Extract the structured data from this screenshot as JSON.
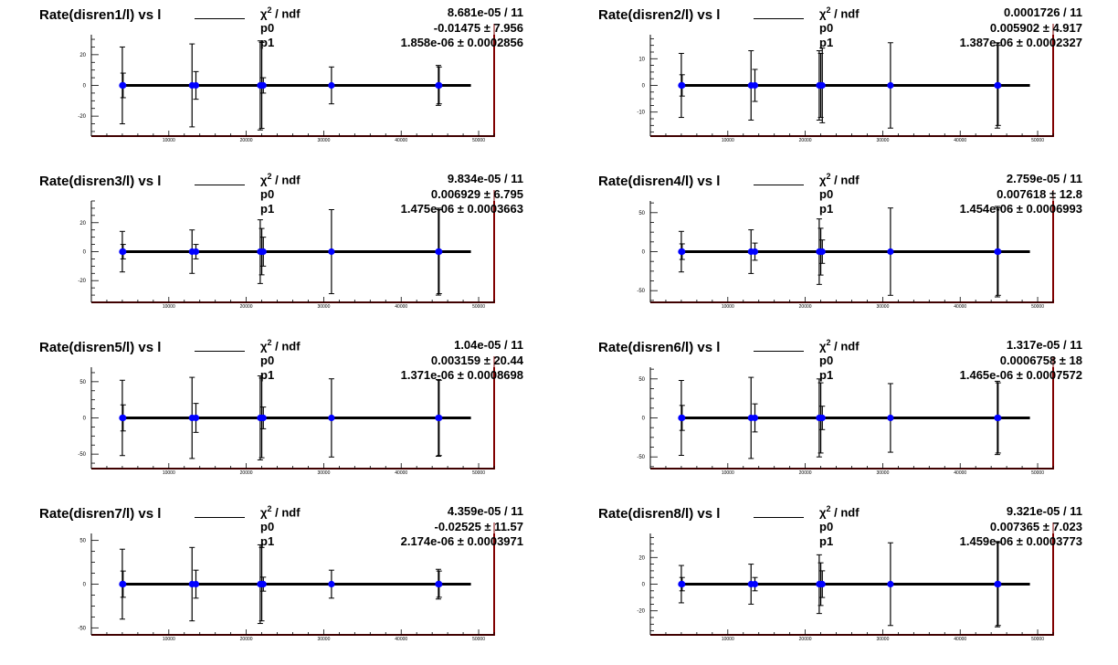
{
  "colors": {
    "marker": "#0000ff",
    "frame_shadow": "#800000",
    "line": "#000000"
  },
  "stats_labels": {
    "chi2_symbol": "χ",
    "chi2_power": "2",
    "chi2_rest": " / ndf",
    "p0": "p0",
    "p1": "p1"
  },
  "chart_data": [
    {
      "type": "scatter",
      "title": "Rate(disren1/l) vs l",
      "stats": {
        "chi2_ndf": "8.681e-05 / 11",
        "p0": "-0.01475 ± 7.956",
        "p1": "1.858e-06 ± 0.0002856"
      },
      "xlim": [
        0,
        52000
      ],
      "ylim": [
        -33,
        33
      ],
      "x_ticks": [
        10000,
        20000,
        30000,
        40000,
        50000
      ],
      "x_tick_labels": [
        "10000",
        "20000",
        "30000",
        "40000",
        "50000"
      ],
      "y_ticks": [
        -20,
        0,
        20
      ],
      "y_tick_labels": [
        "-20",
        "0",
        "20"
      ],
      "fit_line": {
        "x0": 4000,
        "x1": 49000,
        "y0": 0,
        "y1": 0
      },
      "points": [
        {
          "x": 4000,
          "y": 0,
          "err": 25
        },
        {
          "x": 4100,
          "y": 0,
          "err": 8
        },
        {
          "x": 13000,
          "y": 0,
          "err": 27
        },
        {
          "x": 13500,
          "y": 0,
          "err": 9
        },
        {
          "x": 21800,
          "y": 0,
          "err": 29
        },
        {
          "x": 22000,
          "y": 0,
          "err": 28
        },
        {
          "x": 22200,
          "y": 0,
          "err": 5
        },
        {
          "x": 31000,
          "y": 0,
          "err": 12
        },
        {
          "x": 44800,
          "y": 0,
          "err": 13
        },
        {
          "x": 44900,
          "y": 0,
          "err": 12
        }
      ]
    },
    {
      "type": "scatter",
      "title": "Rate(disren2/l) vs l",
      "stats": {
        "chi2_ndf": "0.0001726 / 11",
        "p0": "0.005902 ± 4.917",
        "p1": "1.387e-06 ± 0.0002327"
      },
      "xlim": [
        0,
        52000
      ],
      "ylim": [
        -19,
        19
      ],
      "x_ticks": [
        10000,
        20000,
        30000,
        40000,
        50000
      ],
      "x_tick_labels": [
        "10000",
        "20000",
        "30000",
        "40000",
        "50000"
      ],
      "y_ticks": [
        -10,
        0,
        10
      ],
      "y_tick_labels": [
        "-10",
        "0",
        "10"
      ],
      "fit_line": {
        "x0": 4000,
        "x1": 49000,
        "y0": 0,
        "y1": 0
      },
      "points": [
        {
          "x": 4000,
          "y": 0,
          "err": 12
        },
        {
          "x": 4100,
          "y": 0,
          "err": 4
        },
        {
          "x": 13000,
          "y": 0,
          "err": 13
        },
        {
          "x": 13500,
          "y": 0,
          "err": 6
        },
        {
          "x": 21800,
          "y": 0,
          "err": 13
        },
        {
          "x": 22000,
          "y": 0,
          "err": 12
        },
        {
          "x": 22200,
          "y": 0,
          "err": 14
        },
        {
          "x": 31000,
          "y": 0,
          "err": 16
        },
        {
          "x": 44800,
          "y": 0,
          "err": 16
        },
        {
          "x": 44900,
          "y": 0,
          "err": 15
        }
      ]
    },
    {
      "type": "scatter",
      "title": "Rate(disren3/l) vs l",
      "stats": {
        "chi2_ndf": "9.834e-05 / 11",
        "p0": "0.006929 ± 6.795",
        "p1": "1.475e-06 ± 0.0003663"
      },
      "xlim": [
        0,
        52000
      ],
      "ylim": [
        -35,
        35
      ],
      "x_ticks": [
        10000,
        20000,
        30000,
        40000,
        50000
      ],
      "x_tick_labels": [
        "10000",
        "20000",
        "30000",
        "40000",
        "50000"
      ],
      "y_ticks": [
        -20,
        0,
        20
      ],
      "y_tick_labels": [
        "-20",
        "0",
        "20"
      ],
      "fit_line": {
        "x0": 4000,
        "x1": 49000,
        "y0": 0,
        "y1": 0
      },
      "points": [
        {
          "x": 4000,
          "y": 0,
          "err": 14
        },
        {
          "x": 4100,
          "y": 0,
          "err": 5
        },
        {
          "x": 13000,
          "y": 0,
          "err": 15
        },
        {
          "x": 13500,
          "y": 0,
          "err": 5
        },
        {
          "x": 21800,
          "y": 0,
          "err": 22
        },
        {
          "x": 22000,
          "y": 0,
          "err": 16
        },
        {
          "x": 22200,
          "y": 0,
          "err": 10
        },
        {
          "x": 31000,
          "y": 0,
          "err": 29
        },
        {
          "x": 44800,
          "y": 0,
          "err": 30
        },
        {
          "x": 44900,
          "y": 0,
          "err": 29
        }
      ]
    },
    {
      "type": "scatter",
      "title": "Rate(disren4/l) vs l",
      "stats": {
        "chi2_ndf": "2.759e-05 / 11",
        "p0": "0.007618 ± 12.8",
        "p1": "1.454e-06 ± 0.0006993"
      },
      "xlim": [
        0,
        52000
      ],
      "ylim": [
        -65,
        65
      ],
      "x_ticks": [
        10000,
        20000,
        30000,
        40000,
        50000
      ],
      "x_tick_labels": [
        "10000",
        "20000",
        "30000",
        "40000",
        "50000"
      ],
      "y_ticks": [
        -50,
        0,
        50
      ],
      "y_tick_labels": [
        "-50",
        "0",
        "50"
      ],
      "fit_line": {
        "x0": 4000,
        "x1": 49000,
        "y0": 0,
        "y1": 0
      },
      "points": [
        {
          "x": 4000,
          "y": 0,
          "err": 26
        },
        {
          "x": 4100,
          "y": 0,
          "err": 10
        },
        {
          "x": 13000,
          "y": 0,
          "err": 28
        },
        {
          "x": 13500,
          "y": 0,
          "err": 11
        },
        {
          "x": 21800,
          "y": 0,
          "err": 42
        },
        {
          "x": 22000,
          "y": 0,
          "err": 30
        },
        {
          "x": 22200,
          "y": 0,
          "err": 15
        },
        {
          "x": 31000,
          "y": 0,
          "err": 56
        },
        {
          "x": 44800,
          "y": 0,
          "err": 58
        },
        {
          "x": 44900,
          "y": 0,
          "err": 56
        }
      ]
    },
    {
      "type": "scatter",
      "title": "Rate(disren5/l) vs l",
      "stats": {
        "chi2_ndf": "1.04e-05 / 11",
        "p0": "0.003159 ± 20.44",
        "p1": "1.371e-06 ± 0.0008698"
      },
      "xlim": [
        0,
        52000
      ],
      "ylim": [
        -70,
        70
      ],
      "x_ticks": [
        10000,
        20000,
        30000,
        40000,
        50000
      ],
      "x_tick_labels": [
        "10000",
        "20000",
        "30000",
        "40000",
        "50000"
      ],
      "y_ticks": [
        -50,
        0,
        50
      ],
      "y_tick_labels": [
        "-50",
        "0",
        "50"
      ],
      "fit_line": {
        "x0": 4000,
        "x1": 49000,
        "y0": 0,
        "y1": 0
      },
      "points": [
        {
          "x": 4000,
          "y": 0,
          "err": 52
        },
        {
          "x": 4100,
          "y": 0,
          "err": 18
        },
        {
          "x": 13000,
          "y": 0,
          "err": 56
        },
        {
          "x": 13500,
          "y": 0,
          "err": 20
        },
        {
          "x": 21800,
          "y": 0,
          "err": 58
        },
        {
          "x": 22000,
          "y": 0,
          "err": 55
        },
        {
          "x": 22200,
          "y": 0,
          "err": 15
        },
        {
          "x": 31000,
          "y": 0,
          "err": 54
        },
        {
          "x": 44800,
          "y": 0,
          "err": 53
        },
        {
          "x": 44900,
          "y": 0,
          "err": 52
        }
      ]
    },
    {
      "type": "scatter",
      "title": "Rate(disren6/l) vs l",
      "stats": {
        "chi2_ndf": "1.317e-05 / 11",
        "p0": "0.0006758 ± 18",
        "p1": "1.465e-06 ± 0.0007572"
      },
      "xlim": [
        0,
        52000
      ],
      "ylim": [
        -65,
        65
      ],
      "x_ticks": [
        10000,
        20000,
        30000,
        40000,
        50000
      ],
      "x_tick_labels": [
        "10000",
        "20000",
        "30000",
        "40000",
        "50000"
      ],
      "y_ticks": [
        -50,
        0,
        50
      ],
      "y_tick_labels": [
        "-50",
        "0",
        "50"
      ],
      "fit_line": {
        "x0": 4000,
        "x1": 49000,
        "y0": 0,
        "y1": 0
      },
      "points": [
        {
          "x": 4000,
          "y": 0,
          "err": 48
        },
        {
          "x": 4100,
          "y": 0,
          "err": 16
        },
        {
          "x": 13000,
          "y": 0,
          "err": 52
        },
        {
          "x": 13500,
          "y": 0,
          "err": 18
        },
        {
          "x": 21800,
          "y": 0,
          "err": 50
        },
        {
          "x": 22000,
          "y": 0,
          "err": 45
        },
        {
          "x": 22200,
          "y": 0,
          "err": 15
        },
        {
          "x": 31000,
          "y": 0,
          "err": 44
        },
        {
          "x": 44800,
          "y": 0,
          "err": 47
        },
        {
          "x": 44900,
          "y": 0,
          "err": 45
        }
      ]
    },
    {
      "type": "scatter",
      "title": "Rate(disren7/l) vs l",
      "stats": {
        "chi2_ndf": "4.359e-05 / 11",
        "p0": "-0.02525 ± 11.57",
        "p1": "2.174e-06 ± 0.0003971"
      },
      "xlim": [
        0,
        52000
      ],
      "ylim": [
        -58,
        58
      ],
      "x_ticks": [
        10000,
        20000,
        30000,
        40000,
        50000
      ],
      "x_tick_labels": [
        "10000",
        "20000",
        "30000",
        "40000",
        "50000"
      ],
      "y_ticks": [
        -50,
        0,
        50
      ],
      "y_tick_labels": [
        "-50",
        "0",
        "50"
      ],
      "fit_line": {
        "x0": 4000,
        "x1": 49000,
        "y0": 0,
        "y1": 0
      },
      "points": [
        {
          "x": 4000,
          "y": 0,
          "err": 40
        },
        {
          "x": 4100,
          "y": 0,
          "err": 15
        },
        {
          "x": 13000,
          "y": 0,
          "err": 42
        },
        {
          "x": 13500,
          "y": 0,
          "err": 16
        },
        {
          "x": 21800,
          "y": 0,
          "err": 45
        },
        {
          "x": 22000,
          "y": 0,
          "err": 42
        },
        {
          "x": 22200,
          "y": 0,
          "err": 8
        },
        {
          "x": 31000,
          "y": 0,
          "err": 16
        },
        {
          "x": 44800,
          "y": 0,
          "err": 17
        },
        {
          "x": 44900,
          "y": 0,
          "err": 15
        }
      ]
    },
    {
      "type": "scatter",
      "title": "Rate(disren8/l) vs l",
      "stats": {
        "chi2_ndf": "9.321e-05 / 11",
        "p0": "0.007365 ± 7.023",
        "p1": "1.459e-06 ± 0.0003773"
      },
      "xlim": [
        0,
        52000
      ],
      "ylim": [
        -38,
        38
      ],
      "x_ticks": [
        10000,
        20000,
        30000,
        40000,
        50000
      ],
      "x_tick_labels": [
        "10000",
        "20000",
        "30000",
        "40000",
        "50000"
      ],
      "y_ticks": [
        -20,
        0,
        20
      ],
      "y_tick_labels": [
        "-20",
        "0",
        "20"
      ],
      "fit_line": {
        "x0": 4000,
        "x1": 49000,
        "y0": 0,
        "y1": 0
      },
      "points": [
        {
          "x": 4000,
          "y": 0,
          "err": 14
        },
        {
          "x": 4100,
          "y": 0,
          "err": 5
        },
        {
          "x": 13000,
          "y": 0,
          "err": 15
        },
        {
          "x": 13500,
          "y": 0,
          "err": 5
        },
        {
          "x": 21800,
          "y": 0,
          "err": 22
        },
        {
          "x": 22000,
          "y": 0,
          "err": 16
        },
        {
          "x": 22200,
          "y": 0,
          "err": 10
        },
        {
          "x": 31000,
          "y": 0,
          "err": 31
        },
        {
          "x": 44800,
          "y": 0,
          "err": 32
        },
        {
          "x": 44900,
          "y": 0,
          "err": 31
        }
      ]
    }
  ]
}
